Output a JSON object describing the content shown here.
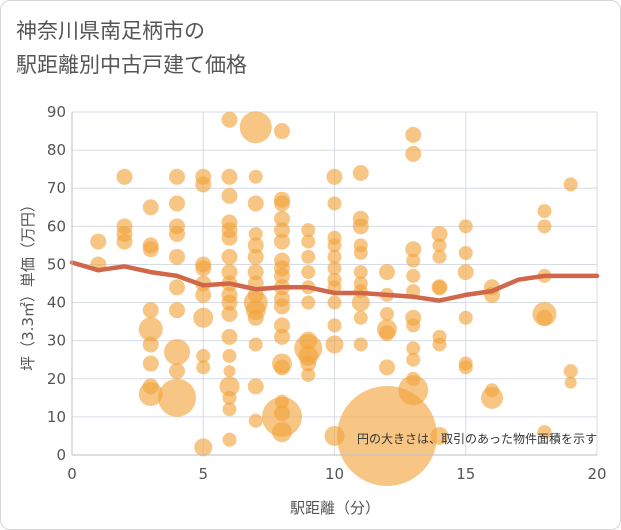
{
  "chart_data": {
    "type": "scatter",
    "title": "神奈川県南足柄市の駅距離別中古戸建て価格",
    "title_lines": [
      "神奈川県南足柄市の",
      "駅距離別中古戸建て価格"
    ],
    "xlabel": "駅距離（分）",
    "ylabel": "坪（3.3㎡）単価（万円）",
    "xlim": [
      0,
      20
    ],
    "ylim": [
      0,
      90
    ],
    "x_ticks": [
      0,
      5,
      10,
      15,
      20
    ],
    "y_ticks": [
      0,
      10,
      20,
      30,
      40,
      50,
      60,
      70,
      80,
      90
    ],
    "grid": true,
    "annotation": "円の大きさは、取引のあった物件面積を示す",
    "bubble_color": "#f2a33a",
    "trend_color": "#d0674a",
    "points": [
      {
        "x": 1,
        "y": 56,
        "r": 8
      },
      {
        "x": 1,
        "y": 50,
        "r": 8
      },
      {
        "x": 2,
        "y": 73,
        "r": 8
      },
      {
        "x": 2,
        "y": 60,
        "r": 8
      },
      {
        "x": 2,
        "y": 58,
        "r": 8
      },
      {
        "x": 2,
        "y": 56,
        "r": 8
      },
      {
        "x": 3,
        "y": 65,
        "r": 8
      },
      {
        "x": 3,
        "y": 55,
        "r": 8
      },
      {
        "x": 3,
        "y": 54,
        "r": 8
      },
      {
        "x": 3,
        "y": 38,
        "r": 8
      },
      {
        "x": 3,
        "y": 33,
        "r": 12
      },
      {
        "x": 3,
        "y": 29,
        "r": 8
      },
      {
        "x": 3,
        "y": 24,
        "r": 8
      },
      {
        "x": 3,
        "y": 18,
        "r": 8
      },
      {
        "x": 3,
        "y": 16,
        "r": 12
      },
      {
        "x": 4,
        "y": 73,
        "r": 8
      },
      {
        "x": 4,
        "y": 66,
        "r": 8
      },
      {
        "x": 4,
        "y": 60,
        "r": 8
      },
      {
        "x": 4,
        "y": 58,
        "r": 8
      },
      {
        "x": 4,
        "y": 52,
        "r": 8
      },
      {
        "x": 4,
        "y": 44,
        "r": 8
      },
      {
        "x": 4,
        "y": 38,
        "r": 8
      },
      {
        "x": 4,
        "y": 27,
        "r": 13
      },
      {
        "x": 4,
        "y": 22,
        "r": 8
      },
      {
        "x": 4,
        "y": 15,
        "r": 19
      },
      {
        "x": 5,
        "y": 73,
        "r": 8
      },
      {
        "x": 5,
        "y": 71,
        "r": 8
      },
      {
        "x": 5,
        "y": 50,
        "r": 8
      },
      {
        "x": 5,
        "y": 49,
        "r": 8
      },
      {
        "x": 5,
        "y": 45,
        "r": 8
      },
      {
        "x": 5,
        "y": 42,
        "r": 8
      },
      {
        "x": 5,
        "y": 36,
        "r": 10
      },
      {
        "x": 5,
        "y": 26,
        "r": 7
      },
      {
        "x": 5,
        "y": 23,
        "r": 7
      },
      {
        "x": 5,
        "y": 2,
        "r": 9
      },
      {
        "x": 6,
        "y": 88,
        "r": 8
      },
      {
        "x": 6,
        "y": 73,
        "r": 8
      },
      {
        "x": 6,
        "y": 68,
        "r": 8
      },
      {
        "x": 6,
        "y": 61,
        "r": 8
      },
      {
        "x": 6,
        "y": 59,
        "r": 8
      },
      {
        "x": 6,
        "y": 57,
        "r": 8
      },
      {
        "x": 6,
        "y": 52,
        "r": 8
      },
      {
        "x": 6,
        "y": 48,
        "r": 8
      },
      {
        "x": 6,
        "y": 45,
        "r": 8
      },
      {
        "x": 6,
        "y": 42,
        "r": 8
      },
      {
        "x": 6,
        "y": 40,
        "r": 8
      },
      {
        "x": 6,
        "y": 37,
        "r": 8
      },
      {
        "x": 6,
        "y": 31,
        "r": 8
      },
      {
        "x": 6,
        "y": 26,
        "r": 7
      },
      {
        "x": 6,
        "y": 22,
        "r": 6
      },
      {
        "x": 6,
        "y": 18,
        "r": 10
      },
      {
        "x": 6,
        "y": 15,
        "r": 7
      },
      {
        "x": 6,
        "y": 12,
        "r": 7
      },
      {
        "x": 6,
        "y": 4,
        "r": 7
      },
      {
        "x": 7,
        "y": 86,
        "r": 16
      },
      {
        "x": 7,
        "y": 73,
        "r": 7
      },
      {
        "x": 7,
        "y": 66,
        "r": 8
      },
      {
        "x": 7,
        "y": 58,
        "r": 7
      },
      {
        "x": 7,
        "y": 55,
        "r": 8
      },
      {
        "x": 7,
        "y": 52,
        "r": 8
      },
      {
        "x": 7,
        "y": 48,
        "r": 8
      },
      {
        "x": 7,
        "y": 45,
        "r": 8
      },
      {
        "x": 7,
        "y": 42,
        "r": 8
      },
      {
        "x": 7,
        "y": 40,
        "r": 12
      },
      {
        "x": 7,
        "y": 38,
        "r": 10
      },
      {
        "x": 7,
        "y": 36,
        "r": 8
      },
      {
        "x": 7,
        "y": 29,
        "r": 7
      },
      {
        "x": 7,
        "y": 18,
        "r": 8
      },
      {
        "x": 7,
        "y": 9,
        "r": 7
      },
      {
        "x": 8,
        "y": 85,
        "r": 8
      },
      {
        "x": 8,
        "y": 67,
        "r": 8
      },
      {
        "x": 8,
        "y": 66,
        "r": 8
      },
      {
        "x": 8,
        "y": 62,
        "r": 8
      },
      {
        "x": 8,
        "y": 59,
        "r": 8
      },
      {
        "x": 8,
        "y": 56,
        "r": 8
      },
      {
        "x": 8,
        "y": 51,
        "r": 8
      },
      {
        "x": 8,
        "y": 49,
        "r": 8
      },
      {
        "x": 8,
        "y": 47,
        "r": 8
      },
      {
        "x": 8,
        "y": 44,
        "r": 8
      },
      {
        "x": 8,
        "y": 41,
        "r": 8
      },
      {
        "x": 8,
        "y": 39,
        "r": 8
      },
      {
        "x": 8,
        "y": 34,
        "r": 8
      },
      {
        "x": 8,
        "y": 31,
        "r": 8
      },
      {
        "x": 8,
        "y": 24,
        "r": 10
      },
      {
        "x": 8,
        "y": 23,
        "r": 8
      },
      {
        "x": 8,
        "y": 14,
        "r": 7
      },
      {
        "x": 8,
        "y": 11,
        "r": 8
      },
      {
        "x": 8,
        "y": 10,
        "r": 20
      },
      {
        "x": 8,
        "y": 6,
        "r": 10
      },
      {
        "x": 9,
        "y": 59,
        "r": 7
      },
      {
        "x": 9,
        "y": 56,
        "r": 7
      },
      {
        "x": 9,
        "y": 52,
        "r": 7
      },
      {
        "x": 9,
        "y": 48,
        "r": 7
      },
      {
        "x": 9,
        "y": 44,
        "r": 7
      },
      {
        "x": 9,
        "y": 40,
        "r": 7
      },
      {
        "x": 9,
        "y": 30,
        "r": 9
      },
      {
        "x": 9,
        "y": 28,
        "r": 14
      },
      {
        "x": 9,
        "y": 26,
        "r": 10
      },
      {
        "x": 9,
        "y": 24,
        "r": 8
      },
      {
        "x": 9,
        "y": 21,
        "r": 7
      },
      {
        "x": 10,
        "y": 73,
        "r": 8
      },
      {
        "x": 10,
        "y": 66,
        "r": 7
      },
      {
        "x": 10,
        "y": 57,
        "r": 7
      },
      {
        "x": 10,
        "y": 55,
        "r": 7
      },
      {
        "x": 10,
        "y": 52,
        "r": 7
      },
      {
        "x": 10,
        "y": 49,
        "r": 7
      },
      {
        "x": 10,
        "y": 46,
        "r": 7
      },
      {
        "x": 10,
        "y": 44,
        "r": 7
      },
      {
        "x": 10,
        "y": 40,
        "r": 7
      },
      {
        "x": 10,
        "y": 34,
        "r": 7
      },
      {
        "x": 10,
        "y": 29,
        "r": 9
      },
      {
        "x": 10,
        "y": 5,
        "r": 10
      },
      {
        "x": 11,
        "y": 74,
        "r": 8
      },
      {
        "x": 11,
        "y": 62,
        "r": 8
      },
      {
        "x": 11,
        "y": 60,
        "r": 8
      },
      {
        "x": 11,
        "y": 55,
        "r": 7
      },
      {
        "x": 11,
        "y": 53,
        "r": 7
      },
      {
        "x": 11,
        "y": 48,
        "r": 7
      },
      {
        "x": 11,
        "y": 45,
        "r": 7
      },
      {
        "x": 11,
        "y": 43,
        "r": 7
      },
      {
        "x": 11,
        "y": 40,
        "r": 9
      },
      {
        "x": 11,
        "y": 36,
        "r": 7
      },
      {
        "x": 11,
        "y": 29,
        "r": 7
      },
      {
        "x": 12,
        "y": 48,
        "r": 8
      },
      {
        "x": 12,
        "y": 42,
        "r": 7
      },
      {
        "x": 12,
        "y": 37,
        "r": 7
      },
      {
        "x": 12,
        "y": 33,
        "r": 10
      },
      {
        "x": 12,
        "y": 32,
        "r": 8
      },
      {
        "x": 12,
        "y": 23,
        "r": 8
      },
      {
        "x": 12,
        "y": 5,
        "r": 50
      },
      {
        "x": 13,
        "y": 84,
        "r": 8
      },
      {
        "x": 13,
        "y": 79,
        "r": 8
      },
      {
        "x": 13,
        "y": 54,
        "r": 8
      },
      {
        "x": 13,
        "y": 51,
        "r": 7
      },
      {
        "x": 13,
        "y": 47,
        "r": 7
      },
      {
        "x": 13,
        "y": 43,
        "r": 7
      },
      {
        "x": 13,
        "y": 36,
        "r": 8
      },
      {
        "x": 13,
        "y": 34,
        "r": 7
      },
      {
        "x": 13,
        "y": 28,
        "r": 7
      },
      {
        "x": 13,
        "y": 25,
        "r": 7
      },
      {
        "x": 13,
        "y": 20,
        "r": 7
      },
      {
        "x": 13,
        "y": 17,
        "r": 15
      },
      {
        "x": 14,
        "y": 58,
        "r": 8
      },
      {
        "x": 14,
        "y": 55,
        "r": 7
      },
      {
        "x": 14,
        "y": 52,
        "r": 7
      },
      {
        "x": 14,
        "y": 44,
        "r": 8
      },
      {
        "x": 14,
        "y": 44,
        "r": 7
      },
      {
        "x": 14,
        "y": 31,
        "r": 7
      },
      {
        "x": 14,
        "y": 29,
        "r": 7
      },
      {
        "x": 14,
        "y": 5,
        "r": 9
      },
      {
        "x": 15,
        "y": 60,
        "r": 7
      },
      {
        "x": 15,
        "y": 53,
        "r": 7
      },
      {
        "x": 15,
        "y": 48,
        "r": 8
      },
      {
        "x": 15,
        "y": 36,
        "r": 7
      },
      {
        "x": 15,
        "y": 24,
        "r": 7
      },
      {
        "x": 15,
        "y": 23,
        "r": 7
      },
      {
        "x": 16,
        "y": 44,
        "r": 8
      },
      {
        "x": 16,
        "y": 42,
        "r": 8
      },
      {
        "x": 16,
        "y": 17,
        "r": 7
      },
      {
        "x": 16,
        "y": 15,
        "r": 11
      },
      {
        "x": 18,
        "y": 64,
        "r": 7
      },
      {
        "x": 18,
        "y": 60,
        "r": 7
      },
      {
        "x": 18,
        "y": 47,
        "r": 7
      },
      {
        "x": 18,
        "y": 37,
        "r": 12
      },
      {
        "x": 18,
        "y": 36,
        "r": 8
      },
      {
        "x": 18,
        "y": 6,
        "r": 7
      },
      {
        "x": 19,
        "y": 71,
        "r": 7
      },
      {
        "x": 19,
        "y": 22,
        "r": 7
      },
      {
        "x": 19,
        "y": 19,
        "r": 6
      }
    ],
    "trend": [
      {
        "x": 0,
        "y": 50.5
      },
      {
        "x": 1,
        "y": 48.5
      },
      {
        "x": 2,
        "y": 49.5
      },
      {
        "x": 3,
        "y": 48.0
      },
      {
        "x": 4,
        "y": 47.0
      },
      {
        "x": 5,
        "y": 44.5
      },
      {
        "x": 6,
        "y": 45.0
      },
      {
        "x": 7,
        "y": 43.5
      },
      {
        "x": 8,
        "y": 44.0
      },
      {
        "x": 9,
        "y": 44.0
      },
      {
        "x": 10,
        "y": 42.5
      },
      {
        "x": 11,
        "y": 42.5
      },
      {
        "x": 12,
        "y": 42.0
      },
      {
        "x": 13,
        "y": 41.5
      },
      {
        "x": 14,
        "y": 40.5
      },
      {
        "x": 15,
        "y": 42.0
      },
      {
        "x": 16,
        "y": 43.0
      },
      {
        "x": 17,
        "y": 46.0
      },
      {
        "x": 18,
        "y": 47.0
      },
      {
        "x": 19,
        "y": 47.0
      },
      {
        "x": 20,
        "y": 47.0
      }
    ]
  }
}
